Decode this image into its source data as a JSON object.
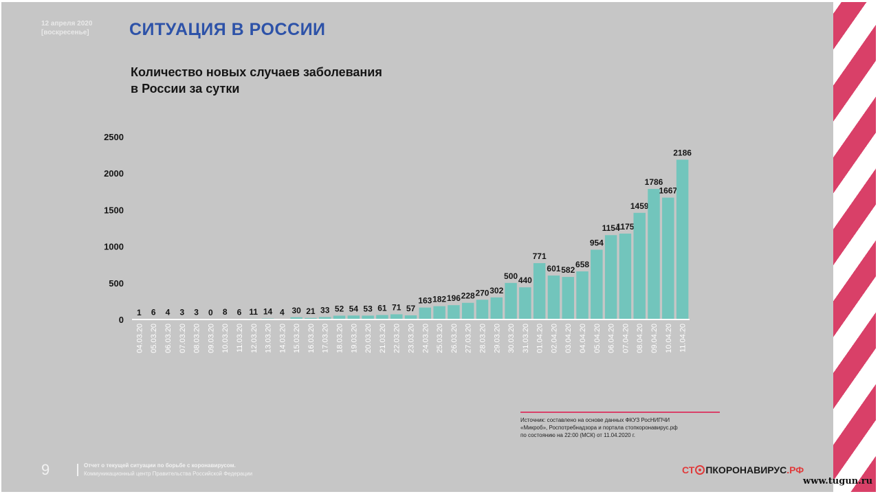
{
  "header": {
    "date_line1": "12 апреля 2020",
    "date_line2": "[воскресенье]",
    "title": "СИТУАЦИЯ В РОССИИ"
  },
  "chart_data": {
    "type": "bar",
    "title_lines": [
      "Количество новых случаев заболевания",
      "в России за сутки"
    ],
    "categories": [
      "04.03.20",
      "05.03.20",
      "06.03.20",
      "07.03.20",
      "08.03.20",
      "09.03.20",
      "10.03.20",
      "11.03.20",
      "12.03.20",
      "13.03.20",
      "14.03.20",
      "15.03.20",
      "16.03.20",
      "17.03.20",
      "18.03.20",
      "19.03.20",
      "20.03.20",
      "21.03.20",
      "22.03.20",
      "23.03.20",
      "24.03.20",
      "25.03.20",
      "26.03.20",
      "27.03.20",
      "28.03.20",
      "29.03.20",
      "30.03.20",
      "31.03.20",
      "01.04.20",
      "02.04.20",
      "03.04.20",
      "04.04.20",
      "05.04.20",
      "06.04.20",
      "07.04.20",
      "08.04.20",
      "09.04.20",
      "10.04.20",
      "11.04.20"
    ],
    "values": [
      1,
      6,
      4,
      3,
      3,
      0,
      8,
      6,
      11,
      14,
      4,
      30,
      21,
      33,
      52,
      54,
      53,
      61,
      71,
      57,
      163,
      182,
      196,
      228,
      270,
      302,
      500,
      440,
      771,
      601,
      582,
      658,
      954,
      1154,
      1175,
      1459,
      1786,
      1667,
      2186
    ],
    "y_ticks": [
      0,
      500,
      1000,
      1500,
      2000,
      2500
    ],
    "ylim": [
      0,
      2500
    ],
    "bar_color": "#72c5bc",
    "grid": false
  },
  "source": {
    "line1": "Источник: составлено на основе данных ФКУЗ РосНИПЧИ",
    "line2": "«Микроб», Роспотребнадзора и портала стопкоронавирус.рф",
    "line3": "по состоянию на 22:00 (МСК) от 11.04.2020 г."
  },
  "footer": {
    "page_number": "9",
    "line1": "Отчет о текущей ситуации по борьбе с коронавирусом.",
    "line2": "Коммуникационный центр Правительства Российской Федерации"
  },
  "logo": {
    "part1": "СТ",
    "part2": "ПКОРОНАВИРУС",
    "part3": ".РФ",
    "icon": "virus-icon"
  },
  "watermark": "www.tugun.ru",
  "colors": {
    "title_blue": "#2d52a8",
    "accent_red": "#d94068",
    "slide_bg": "#c6c6c6"
  }
}
